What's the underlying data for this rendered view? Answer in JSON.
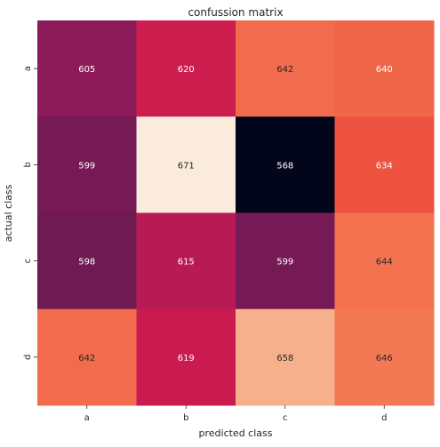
{
  "chart_data": {
    "type": "heatmap",
    "title": "confussion matrix",
    "xlabel": "predicted class",
    "ylabel": "actual class",
    "x_categories": [
      "a",
      "b",
      "c",
      "d"
    ],
    "y_categories": [
      "a",
      "b",
      "c",
      "d"
    ],
    "values": [
      [
        605,
        620,
        642,
        640
      ],
      [
        599,
        671,
        568,
        634
      ],
      [
        598,
        615,
        599,
        644
      ],
      [
        642,
        619,
        658,
        646
      ]
    ],
    "value_range": [
      568,
      671
    ],
    "colormap": "rocket",
    "colorbar": false,
    "grid": false
  }
}
